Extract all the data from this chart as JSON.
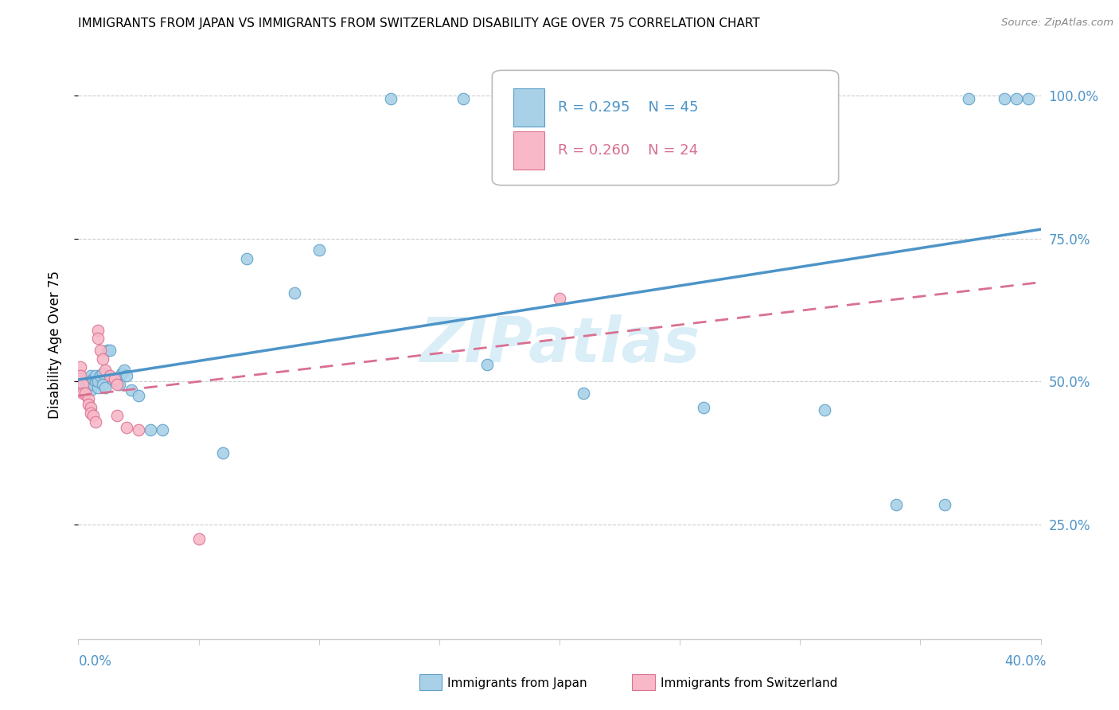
{
  "title": "IMMIGRANTS FROM JAPAN VS IMMIGRANTS FROM SWITZERLAND DISABILITY AGE OVER 75 CORRELATION CHART",
  "source": "Source: ZipAtlas.com",
  "ylabel": "Disability Age Over 75",
  "r_japan": 0.295,
  "n_japan": 45,
  "r_swiss": 0.26,
  "n_swiss": 24,
  "japan_color_fill": "#a8d1e7",
  "japan_color_edge": "#5b9ec9",
  "japan_line_color": "#4d94c8",
  "swiss_color_fill": "#f8b8c8",
  "swiss_color_edge": "#d97090",
  "swiss_line_color": "#d97090",
  "watermark_color": "#daeef7",
  "grid_color": "#cccccc",
  "title_color": "#000000",
  "source_color": "#888888",
  "axis_label_color": "#4d94c8",
  "japan_x": [
    0.001,
    0.002,
    0.003,
    0.004,
    0.005,
    0.005,
    0.006,
    0.006,
    0.007,
    0.007,
    0.008,
    0.008,
    0.009,
    0.01,
    0.01,
    0.011,
    0.012,
    0.013,
    0.014,
    0.015,
    0.016,
    0.017,
    0.018,
    0.019,
    0.02,
    0.022,
    0.025,
    0.03,
    0.035,
    0.06,
    0.07,
    0.09,
    0.1,
    0.13,
    0.16,
    0.17,
    0.21,
    0.26,
    0.31,
    0.34,
    0.36,
    0.37,
    0.385,
    0.39,
    0.395
  ],
  "japan_y": [
    0.505,
    0.495,
    0.49,
    0.5,
    0.51,
    0.485,
    0.495,
    0.505,
    0.5,
    0.51,
    0.49,
    0.5,
    0.51,
    0.515,
    0.495,
    0.49,
    0.555,
    0.555,
    0.505,
    0.505,
    0.5,
    0.495,
    0.515,
    0.52,
    0.51,
    0.485,
    0.475,
    0.415,
    0.415,
    0.375,
    0.715,
    0.655,
    0.73,
    0.995,
    0.995,
    0.53,
    0.48,
    0.455,
    0.45,
    0.285,
    0.285,
    0.995,
    0.995,
    0.995,
    0.995
  ],
  "swiss_x": [
    0.001,
    0.001,
    0.002,
    0.002,
    0.003,
    0.004,
    0.004,
    0.005,
    0.005,
    0.006,
    0.007,
    0.008,
    0.008,
    0.009,
    0.01,
    0.011,
    0.013,
    0.015,
    0.016,
    0.016,
    0.02,
    0.025,
    0.05,
    0.2
  ],
  "swiss_y": [
    0.525,
    0.51,
    0.495,
    0.48,
    0.48,
    0.47,
    0.46,
    0.455,
    0.445,
    0.44,
    0.43,
    0.59,
    0.575,
    0.555,
    0.54,
    0.52,
    0.51,
    0.505,
    0.495,
    0.44,
    0.42,
    0.415,
    0.225,
    0.645
  ],
  "xlim": [
    0.0,
    0.4
  ],
  "ylim": [
    0.05,
    1.08
  ],
  "yticks": [
    0.25,
    0.5,
    0.75,
    1.0
  ],
  "ytick_labels": [
    "25.0%",
    "50.0%",
    "75.0%",
    "100.0%"
  ],
  "xtick_left_label": "0.0%",
  "xtick_right_label": "40.0%",
  "bottom_legend_japan": "Immigrants from Japan",
  "bottom_legend_swiss": "Immigrants from Switzerland"
}
